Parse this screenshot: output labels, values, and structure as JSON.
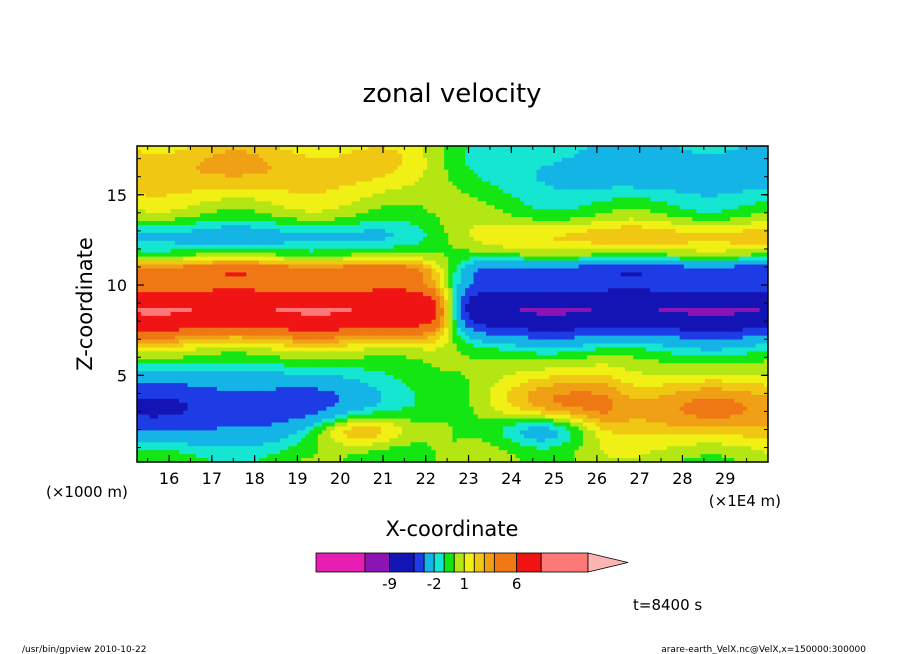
{
  "chart_data": {
    "type": "heatmap",
    "title": "zonal velocity",
    "xlabel": "X-coordinate",
    "ylabel": "Z-coordinate",
    "x_unit_left": "(×1000 m)",
    "x_unit_right": "(×1E4 m)",
    "xlim": [
      15.25,
      30.0
    ],
    "ylim": [
      0.2,
      17.7
    ],
    "x_ticks": [
      16,
      17,
      18,
      19,
      20,
      21,
      22,
      23,
      24,
      25,
      26,
      27,
      28,
      29
    ],
    "x_tick_labels": [
      "16",
      "17",
      "18",
      "19",
      "20",
      "21",
      "22",
      "23",
      "24",
      "25",
      "26",
      "27",
      "28",
      "29"
    ],
    "y_ticks": [
      5,
      10,
      15
    ],
    "y_tick_labels": [
      "5",
      "10",
      "15"
    ],
    "colorbar": {
      "levels": [
        -12,
        -9,
        -6,
        -4,
        -2,
        -1,
        0,
        1,
        2,
        3,
        4,
        6,
        9,
        12
      ],
      "colors": [
        "#e61eb4",
        "#8c14b4",
        "#1414b4",
        "#1e3ce6",
        "#14b4e6",
        "#14e6d2",
        "#14e614",
        "#b4e614",
        "#f0f014",
        "#f0c814",
        "#f0a014",
        "#f07814",
        "#f01414",
        "#ff7878",
        "#ffb4b4"
      ],
      "tick_labels": [
        "-9",
        "-2",
        "1",
        "6"
      ],
      "tick_values": [
        -9,
        -2,
        1,
        6
      ]
    },
    "time_label": "t=8400 s",
    "footer_left": "/usr/bin/gpview  2010-10-22",
    "footer_right": "arare-earth_VelX.nc@VelX,x=150000:300000"
  }
}
